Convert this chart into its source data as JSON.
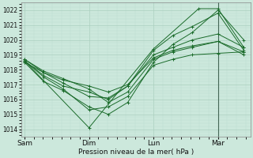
{
  "xlabel": "Pression niveau de la mer( hPa )",
  "ylim": [
    1013.5,
    1022.5
  ],
  "yticks": [
    1014,
    1015,
    1016,
    1017,
    1018,
    1019,
    1020,
    1021,
    1022
  ],
  "xtick_labels": [
    "Sam",
    "Dim",
    "Lun",
    "Mar"
  ],
  "xtick_pos": [
    0.0,
    1.0,
    2.0,
    3.0
  ],
  "xlim": [
    -0.05,
    3.5
  ],
  "bg_color": "#cce8dc",
  "grid_major_color": "#aacfbe",
  "grid_minor_color": "#bcddd0",
  "line_color": "#1a6b2a",
  "lines": [
    {
      "x": [
        0.0,
        1.0,
        2.0,
        2.7,
        3.0,
        3.4
      ],
      "y": [
        1018.6,
        1014.1,
        1019.4,
        1022.1,
        1022.1,
        1019.5
      ]
    },
    {
      "x": [
        0.0,
        0.3,
        0.6,
        1.0,
        1.3,
        1.6,
        2.0,
        2.3,
        2.6,
        3.0,
        3.4
      ],
      "y": [
        1018.5,
        1017.8,
        1017.3,
        1016.9,
        1016.5,
        1017.0,
        1018.8,
        1019.3,
        1019.6,
        1019.9,
        1019.0
      ]
    },
    {
      "x": [
        0.0,
        0.3,
        0.6,
        1.0,
        1.3,
        1.6,
        2.0,
        2.3,
        2.6,
        3.0,
        3.4
      ],
      "y": [
        1018.6,
        1017.6,
        1016.9,
        1016.5,
        1016.0,
        1016.9,
        1019.3,
        1020.3,
        1020.9,
        1021.8,
        1019.3
      ]
    },
    {
      "x": [
        0.0,
        0.3,
        0.6,
        1.0,
        1.3,
        1.6,
        2.0,
        2.3,
        2.6,
        3.0,
        3.4
      ],
      "y": [
        1018.7,
        1017.9,
        1017.4,
        1016.7,
        1015.8,
        1016.5,
        1018.7,
        1019.2,
        1019.5,
        1019.9,
        1019.2
      ]
    },
    {
      "x": [
        0.0,
        0.3,
        0.6,
        1.0,
        1.3,
        1.6,
        2.0,
        2.3,
        2.6,
        3.0,
        3.4
      ],
      "y": [
        1018.5,
        1017.2,
        1016.6,
        1015.5,
        1015.0,
        1015.8,
        1018.5,
        1019.7,
        1020.5,
        1022.0,
        1020.0
      ]
    },
    {
      "x": [
        0.0,
        0.3,
        0.6,
        1.0,
        1.3,
        1.6,
        2.0,
        2.3,
        2.6,
        3.0,
        3.4
      ],
      "y": [
        1018.6,
        1017.5,
        1016.7,
        1015.3,
        1015.5,
        1016.2,
        1018.3,
        1018.7,
        1019.0,
        1019.1,
        1019.2
      ]
    },
    {
      "x": [
        0.0,
        0.3,
        0.6,
        1.0,
        1.3,
        1.6,
        2.0,
        2.3,
        2.6,
        3.0,
        3.4
      ],
      "y": [
        1018.7,
        1017.8,
        1017.1,
        1016.2,
        1016.1,
        1016.9,
        1019.0,
        1019.5,
        1020.0,
        1020.4,
        1019.5
      ]
    }
  ],
  "vline_x": 3.0,
  "vline_color": "#446655"
}
